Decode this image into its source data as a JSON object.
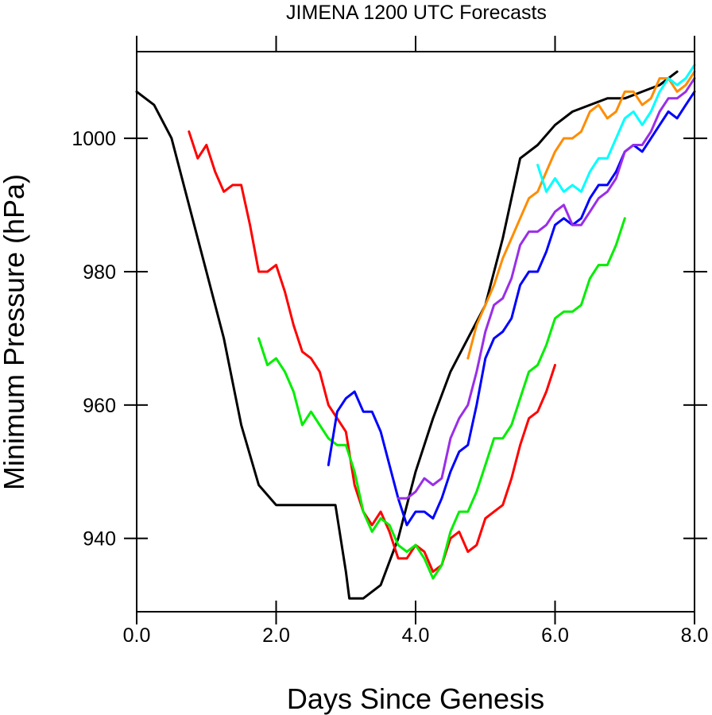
{
  "chart_data": {
    "type": "line",
    "title": "JIMENA 1200 UTC Forecasts",
    "xlabel": "Days Since Genesis",
    "ylabel": "Minimum Pressure (hPa)",
    "xlim": [
      0,
      8
    ],
    "ylim": [
      929,
      1013
    ],
    "xticks": [
      0,
      2,
      4,
      6,
      8
    ],
    "xtick_labels": [
      "0.0",
      "2.0",
      "4.0",
      "6.0",
      "8.0"
    ],
    "yticks": [
      940,
      960,
      980,
      1000
    ],
    "ytick_labels": [
      "940",
      "960",
      "980",
      "1000"
    ],
    "grid": false,
    "legend": "none",
    "series": [
      {
        "color": "#000000",
        "points": [
          [
            0,
            1007
          ],
          [
            0.25,
            1005
          ],
          [
            0.5,
            1000
          ],
          [
            0.75,
            990
          ],
          [
            1.0,
            980
          ],
          [
            1.25,
            970
          ],
          [
            1.5,
            957
          ],
          [
            1.75,
            948
          ],
          [
            2.0,
            945
          ],
          [
            2.25,
            945
          ],
          [
            2.5,
            945
          ],
          [
            2.75,
            945
          ],
          [
            2.85,
            945
          ],
          [
            3.0,
            935
          ],
          [
            3.05,
            931
          ],
          [
            3.25,
            931
          ],
          [
            3.5,
            933
          ],
          [
            3.75,
            940
          ],
          [
            4.0,
            950
          ],
          [
            4.25,
            958
          ],
          [
            4.5,
            965
          ],
          [
            4.75,
            970
          ],
          [
            5.0,
            975
          ],
          [
            5.25,
            985
          ],
          [
            5.5,
            997
          ],
          [
            5.75,
            999
          ],
          [
            6.0,
            1002
          ],
          [
            6.25,
            1004
          ],
          [
            6.5,
            1005
          ],
          [
            6.75,
            1006
          ],
          [
            7.0,
            1006
          ],
          [
            7.25,
            1007
          ],
          [
            7.5,
            1008
          ],
          [
            7.75,
            1010
          ]
        ]
      },
      {
        "color": "#ff0000",
        "points": [
          [
            0.75,
            1001
          ],
          [
            0.875,
            997
          ],
          [
            1.0,
            999
          ],
          [
            1.125,
            995
          ],
          [
            1.25,
            992
          ],
          [
            1.375,
            993
          ],
          [
            1.5,
            993
          ],
          [
            1.625,
            987
          ],
          [
            1.75,
            980
          ],
          [
            1.875,
            980
          ],
          [
            2.0,
            981
          ],
          [
            2.125,
            977
          ],
          [
            2.25,
            972
          ],
          [
            2.375,
            968
          ],
          [
            2.5,
            967
          ],
          [
            2.625,
            965
          ],
          [
            2.75,
            960
          ],
          [
            2.875,
            958
          ],
          [
            3.0,
            956
          ],
          [
            3.125,
            948
          ],
          [
            3.25,
            944
          ],
          [
            3.375,
            942
          ],
          [
            3.5,
            944
          ],
          [
            3.625,
            941
          ],
          [
            3.75,
            937
          ],
          [
            3.875,
            937
          ],
          [
            4.0,
            939
          ],
          [
            4.125,
            938
          ],
          [
            4.25,
            935
          ],
          [
            4.375,
            936
          ],
          [
            4.5,
            940
          ],
          [
            4.625,
            941
          ],
          [
            4.75,
            938
          ],
          [
            4.875,
            939
          ],
          [
            5.0,
            943
          ],
          [
            5.125,
            944
          ],
          [
            5.25,
            945
          ],
          [
            5.375,
            949
          ],
          [
            5.5,
            954
          ],
          [
            5.625,
            958
          ],
          [
            5.75,
            959
          ],
          [
            5.875,
            962
          ],
          [
            6.0,
            966
          ]
        ]
      },
      {
        "color": "#00ee00",
        "points": [
          [
            1.75,
            970
          ],
          [
            1.875,
            966
          ],
          [
            2.0,
            967
          ],
          [
            2.125,
            965
          ],
          [
            2.25,
            962
          ],
          [
            2.375,
            957
          ],
          [
            2.5,
            959
          ],
          [
            2.625,
            957
          ],
          [
            2.75,
            955
          ],
          [
            2.875,
            954
          ],
          [
            3.0,
            954
          ],
          [
            3.125,
            950
          ],
          [
            3.25,
            944
          ],
          [
            3.375,
            941
          ],
          [
            3.5,
            943
          ],
          [
            3.625,
            942
          ],
          [
            3.75,
            939
          ],
          [
            3.875,
            938
          ],
          [
            4.0,
            939
          ],
          [
            4.125,
            937
          ],
          [
            4.25,
            934
          ],
          [
            4.375,
            936
          ],
          [
            4.5,
            941
          ],
          [
            4.625,
            944
          ],
          [
            4.75,
            944
          ],
          [
            4.875,
            947
          ],
          [
            5.0,
            951
          ],
          [
            5.125,
            955
          ],
          [
            5.25,
            955
          ],
          [
            5.375,
            957
          ],
          [
            5.5,
            961
          ],
          [
            5.625,
            965
          ],
          [
            5.75,
            966
          ],
          [
            5.875,
            969
          ],
          [
            6.0,
            973
          ],
          [
            6.125,
            974
          ],
          [
            6.25,
            974
          ],
          [
            6.375,
            975
          ],
          [
            6.5,
            979
          ],
          [
            6.625,
            981
          ],
          [
            6.75,
            981
          ],
          [
            6.875,
            984
          ],
          [
            7.0,
            988
          ]
        ]
      },
      {
        "color": "#0000ff",
        "points": [
          [
            2.75,
            951
          ],
          [
            2.875,
            959
          ],
          [
            3.0,
            961
          ],
          [
            3.125,
            962
          ],
          [
            3.25,
            959
          ],
          [
            3.375,
            959
          ],
          [
            3.5,
            956
          ],
          [
            3.625,
            951
          ],
          [
            3.75,
            946
          ],
          [
            3.875,
            942
          ],
          [
            4.0,
            944
          ],
          [
            4.125,
            944
          ],
          [
            4.25,
            943
          ],
          [
            4.375,
            946
          ],
          [
            4.5,
            950
          ],
          [
            4.625,
            953
          ],
          [
            4.75,
            954
          ],
          [
            4.875,
            960
          ],
          [
            5.0,
            967
          ],
          [
            5.125,
            970
          ],
          [
            5.25,
            971
          ],
          [
            5.375,
            973
          ],
          [
            5.5,
            978
          ],
          [
            5.625,
            980
          ],
          [
            5.75,
            980
          ],
          [
            5.875,
            983
          ],
          [
            6.0,
            987
          ],
          [
            6.125,
            988
          ],
          [
            6.25,
            987
          ],
          [
            6.375,
            988
          ],
          [
            6.5,
            991
          ],
          [
            6.625,
            993
          ],
          [
            6.75,
            993
          ],
          [
            6.875,
            995
          ],
          [
            7.0,
            998
          ],
          [
            7.125,
            999
          ],
          [
            7.25,
            998
          ],
          [
            7.375,
            1000
          ],
          [
            7.5,
            1002
          ],
          [
            7.625,
            1004
          ],
          [
            7.75,
            1003
          ],
          [
            7.875,
            1005
          ],
          [
            8.0,
            1007
          ]
        ]
      },
      {
        "color": "#9a2ee8",
        "points": [
          [
            3.75,
            946
          ],
          [
            3.875,
            946
          ],
          [
            4.0,
            947
          ],
          [
            4.125,
            949
          ],
          [
            4.25,
            948
          ],
          [
            4.375,
            949
          ],
          [
            4.5,
            955
          ],
          [
            4.625,
            958
          ],
          [
            4.75,
            960
          ],
          [
            4.875,
            965
          ],
          [
            5.0,
            971
          ],
          [
            5.125,
            975
          ],
          [
            5.25,
            976
          ],
          [
            5.375,
            979
          ],
          [
            5.5,
            984
          ],
          [
            5.625,
            986
          ],
          [
            5.75,
            986
          ],
          [
            5.875,
            987
          ],
          [
            6.0,
            989
          ],
          [
            6.125,
            990
          ],
          [
            6.25,
            987
          ],
          [
            6.375,
            987
          ],
          [
            6.5,
            989
          ],
          [
            6.625,
            991
          ],
          [
            6.75,
            992
          ],
          [
            6.875,
            994
          ],
          [
            7.0,
            998
          ],
          [
            7.125,
            999
          ],
          [
            7.25,
            999
          ],
          [
            7.375,
            1001
          ],
          [
            7.5,
            1004
          ],
          [
            7.625,
            1006
          ],
          [
            7.75,
            1006
          ],
          [
            7.875,
            1007
          ],
          [
            8.0,
            1009
          ]
        ]
      },
      {
        "color": "#ff8c00",
        "points": [
          [
            4.75,
            967
          ],
          [
            4.875,
            972
          ],
          [
            5.0,
            975
          ],
          [
            5.125,
            978
          ],
          [
            5.25,
            982
          ],
          [
            5.375,
            985
          ],
          [
            5.5,
            988
          ],
          [
            5.625,
            991
          ],
          [
            5.75,
            992
          ],
          [
            5.875,
            995
          ],
          [
            6.0,
            998
          ],
          [
            6.125,
            1000
          ],
          [
            6.25,
            1000
          ],
          [
            6.375,
            1001
          ],
          [
            6.5,
            1004
          ],
          [
            6.625,
            1005
          ],
          [
            6.75,
            1003
          ],
          [
            6.875,
            1004
          ],
          [
            7.0,
            1007
          ],
          [
            7.125,
            1007
          ],
          [
            7.25,
            1005
          ],
          [
            7.375,
            1006
          ],
          [
            7.5,
            1009
          ],
          [
            7.625,
            1009
          ],
          [
            7.75,
            1007
          ],
          [
            7.875,
            1008
          ],
          [
            8.0,
            1010
          ]
        ]
      },
      {
        "color": "#00ffff",
        "points": [
          [
            5.75,
            996
          ],
          [
            5.875,
            992
          ],
          [
            6.0,
            994
          ],
          [
            6.125,
            992
          ],
          [
            6.25,
            993
          ],
          [
            6.375,
            992
          ],
          [
            6.5,
            995
          ],
          [
            6.625,
            997
          ],
          [
            6.75,
            997
          ],
          [
            6.875,
            1000
          ],
          [
            7.0,
            1003
          ],
          [
            7.125,
            1004
          ],
          [
            7.25,
            1002
          ],
          [
            7.375,
            1004
          ],
          [
            7.5,
            1007
          ],
          [
            7.625,
            1009
          ],
          [
            7.75,
            1008
          ],
          [
            7.875,
            1009
          ],
          [
            8.0,
            1011
          ]
        ]
      }
    ]
  }
}
